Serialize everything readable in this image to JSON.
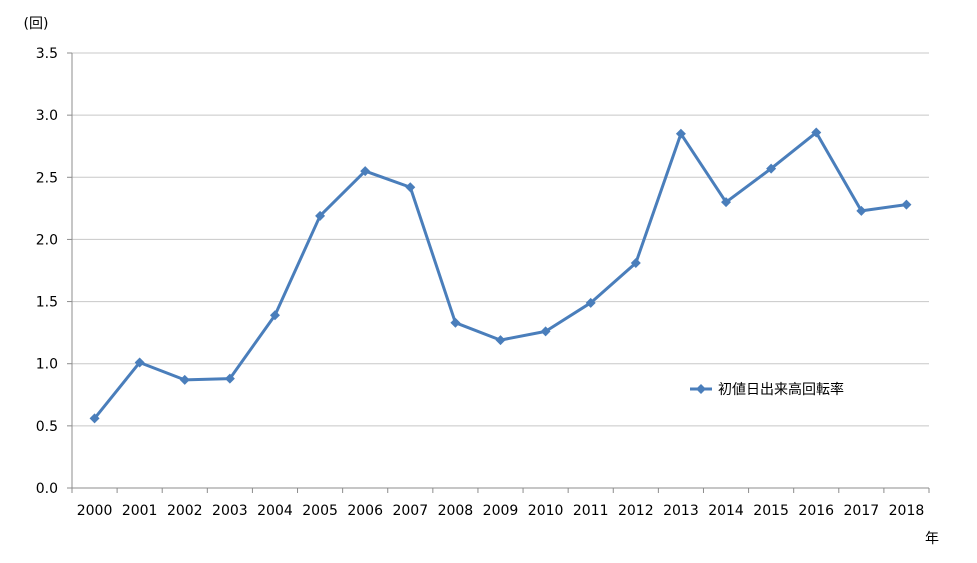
{
  "chart_data": {
    "type": "line",
    "y_unit_label": "(回)",
    "x_unit_label": "年",
    "categories": [
      "2000",
      "2001",
      "2002",
      "2003",
      "2004",
      "2005",
      "2006",
      "2007",
      "2008",
      "2009",
      "2010",
      "2011",
      "2012",
      "2013",
      "2014",
      "2015",
      "2016",
      "2017",
      "2018"
    ],
    "series": [
      {
        "name": "初値日出来高回転率",
        "color": "#4a7ebb",
        "marker": "diamond",
        "values": [
          0.56,
          1.01,
          0.87,
          0.88,
          1.39,
          2.19,
          2.55,
          2.42,
          1.33,
          1.19,
          1.26,
          1.49,
          1.81,
          2.85,
          2.3,
          2.57,
          2.86,
          2.23,
          2.28
        ]
      }
    ],
    "ylim": [
      0,
      3.5
    ],
    "yticks": [
      "0.0",
      "0.5",
      "1.0",
      "1.5",
      "2.0",
      "2.5",
      "3.0",
      "3.5"
    ],
    "grid": true,
    "legend_position": "right-middle"
  }
}
